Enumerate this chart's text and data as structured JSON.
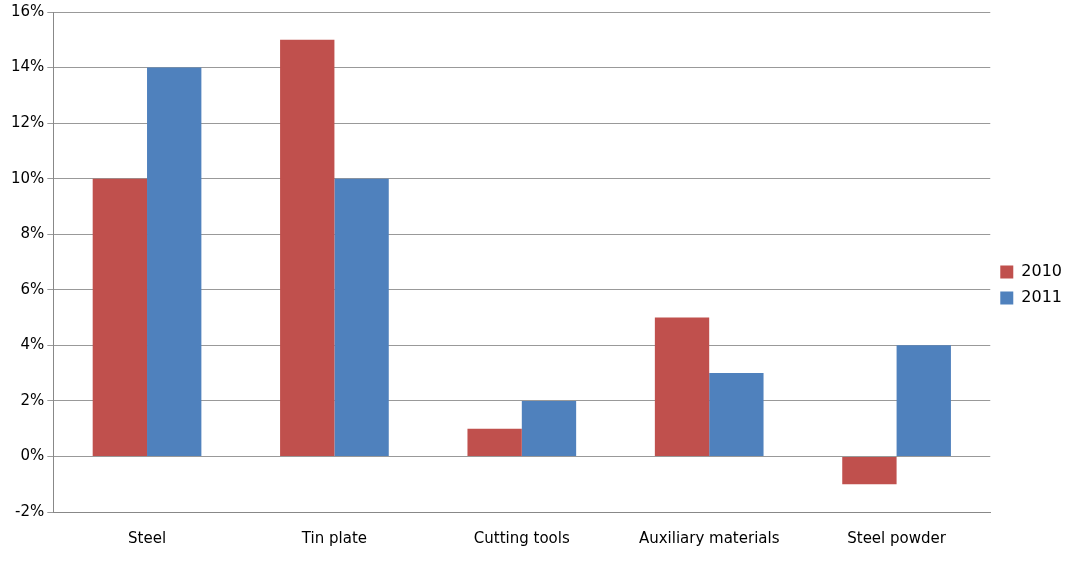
{
  "chart_data": {
    "type": "bar",
    "categories": [
      "Steel",
      "Tin plate",
      "Cutting tools",
      "Auxiliary materials",
      "Steel powder"
    ],
    "series": [
      {
        "name": "2010",
        "color": "#c0504d",
        "values": [
          10,
          15,
          1,
          5,
          -1
        ]
      },
      {
        "name": "2011",
        "color": "#4f81bd",
        "values": [
          14,
          10,
          2,
          3,
          4
        ]
      }
    ],
    "ylim": [
      -2,
      16
    ],
    "yticks": [
      {
        "value": -2,
        "label": "-2%"
      },
      {
        "value": 0,
        "label": "0%"
      },
      {
        "value": 2,
        "label": "2%"
      },
      {
        "value": 4,
        "label": "4%"
      },
      {
        "value": 6,
        "label": "6%"
      },
      {
        "value": 8,
        "label": "8%"
      },
      {
        "value": 10,
        "label": "10%"
      },
      {
        "value": 12,
        "label": "12%"
      },
      {
        "value": 14,
        "label": "14%"
      },
      {
        "value": 16,
        "label": "16%"
      }
    ],
    "grid": "y",
    "legend": "right"
  }
}
